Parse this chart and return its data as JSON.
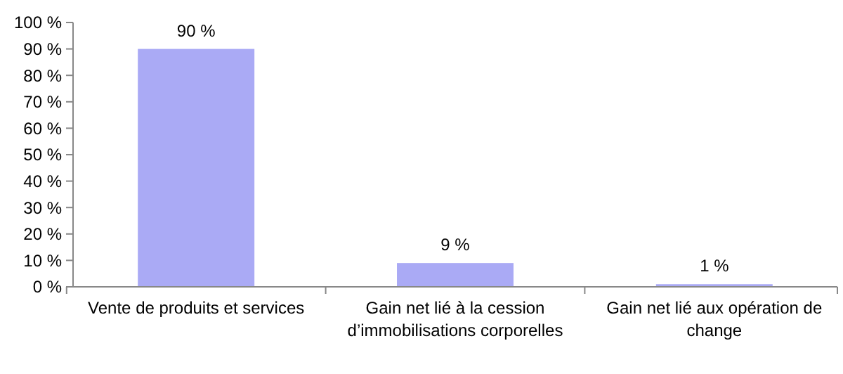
{
  "chart_data": {
    "type": "bar",
    "categories": [
      "Vente de produits et services",
      "Gain net lié à la cession d’immobilisations corporelles",
      "Gain net lié aux opération de change"
    ],
    "values": [
      90,
      9,
      1
    ],
    "color": "#aaaaf5",
    "value_labels": [
      "90 %",
      "9 %",
      "1 %"
    ],
    "ylim": [
      0,
      100
    ],
    "yticks": [
      {
        "value": 0,
        "label": "0 %"
      },
      {
        "value": 10,
        "label": "10 %"
      },
      {
        "value": 20,
        "label": "20 %"
      },
      {
        "value": 30,
        "label": "30 %"
      },
      {
        "value": 40,
        "label": "40 %"
      },
      {
        "value": 50,
        "label": "50 %"
      },
      {
        "value": 60,
        "label": "60 %"
      },
      {
        "value": 70,
        "label": "70 %"
      },
      {
        "value": 80,
        "label": "80 %"
      },
      {
        "value": 90,
        "label": "90 %"
      },
      {
        "value": 100,
        "label": "100 %"
      }
    ],
    "grid": false
  }
}
